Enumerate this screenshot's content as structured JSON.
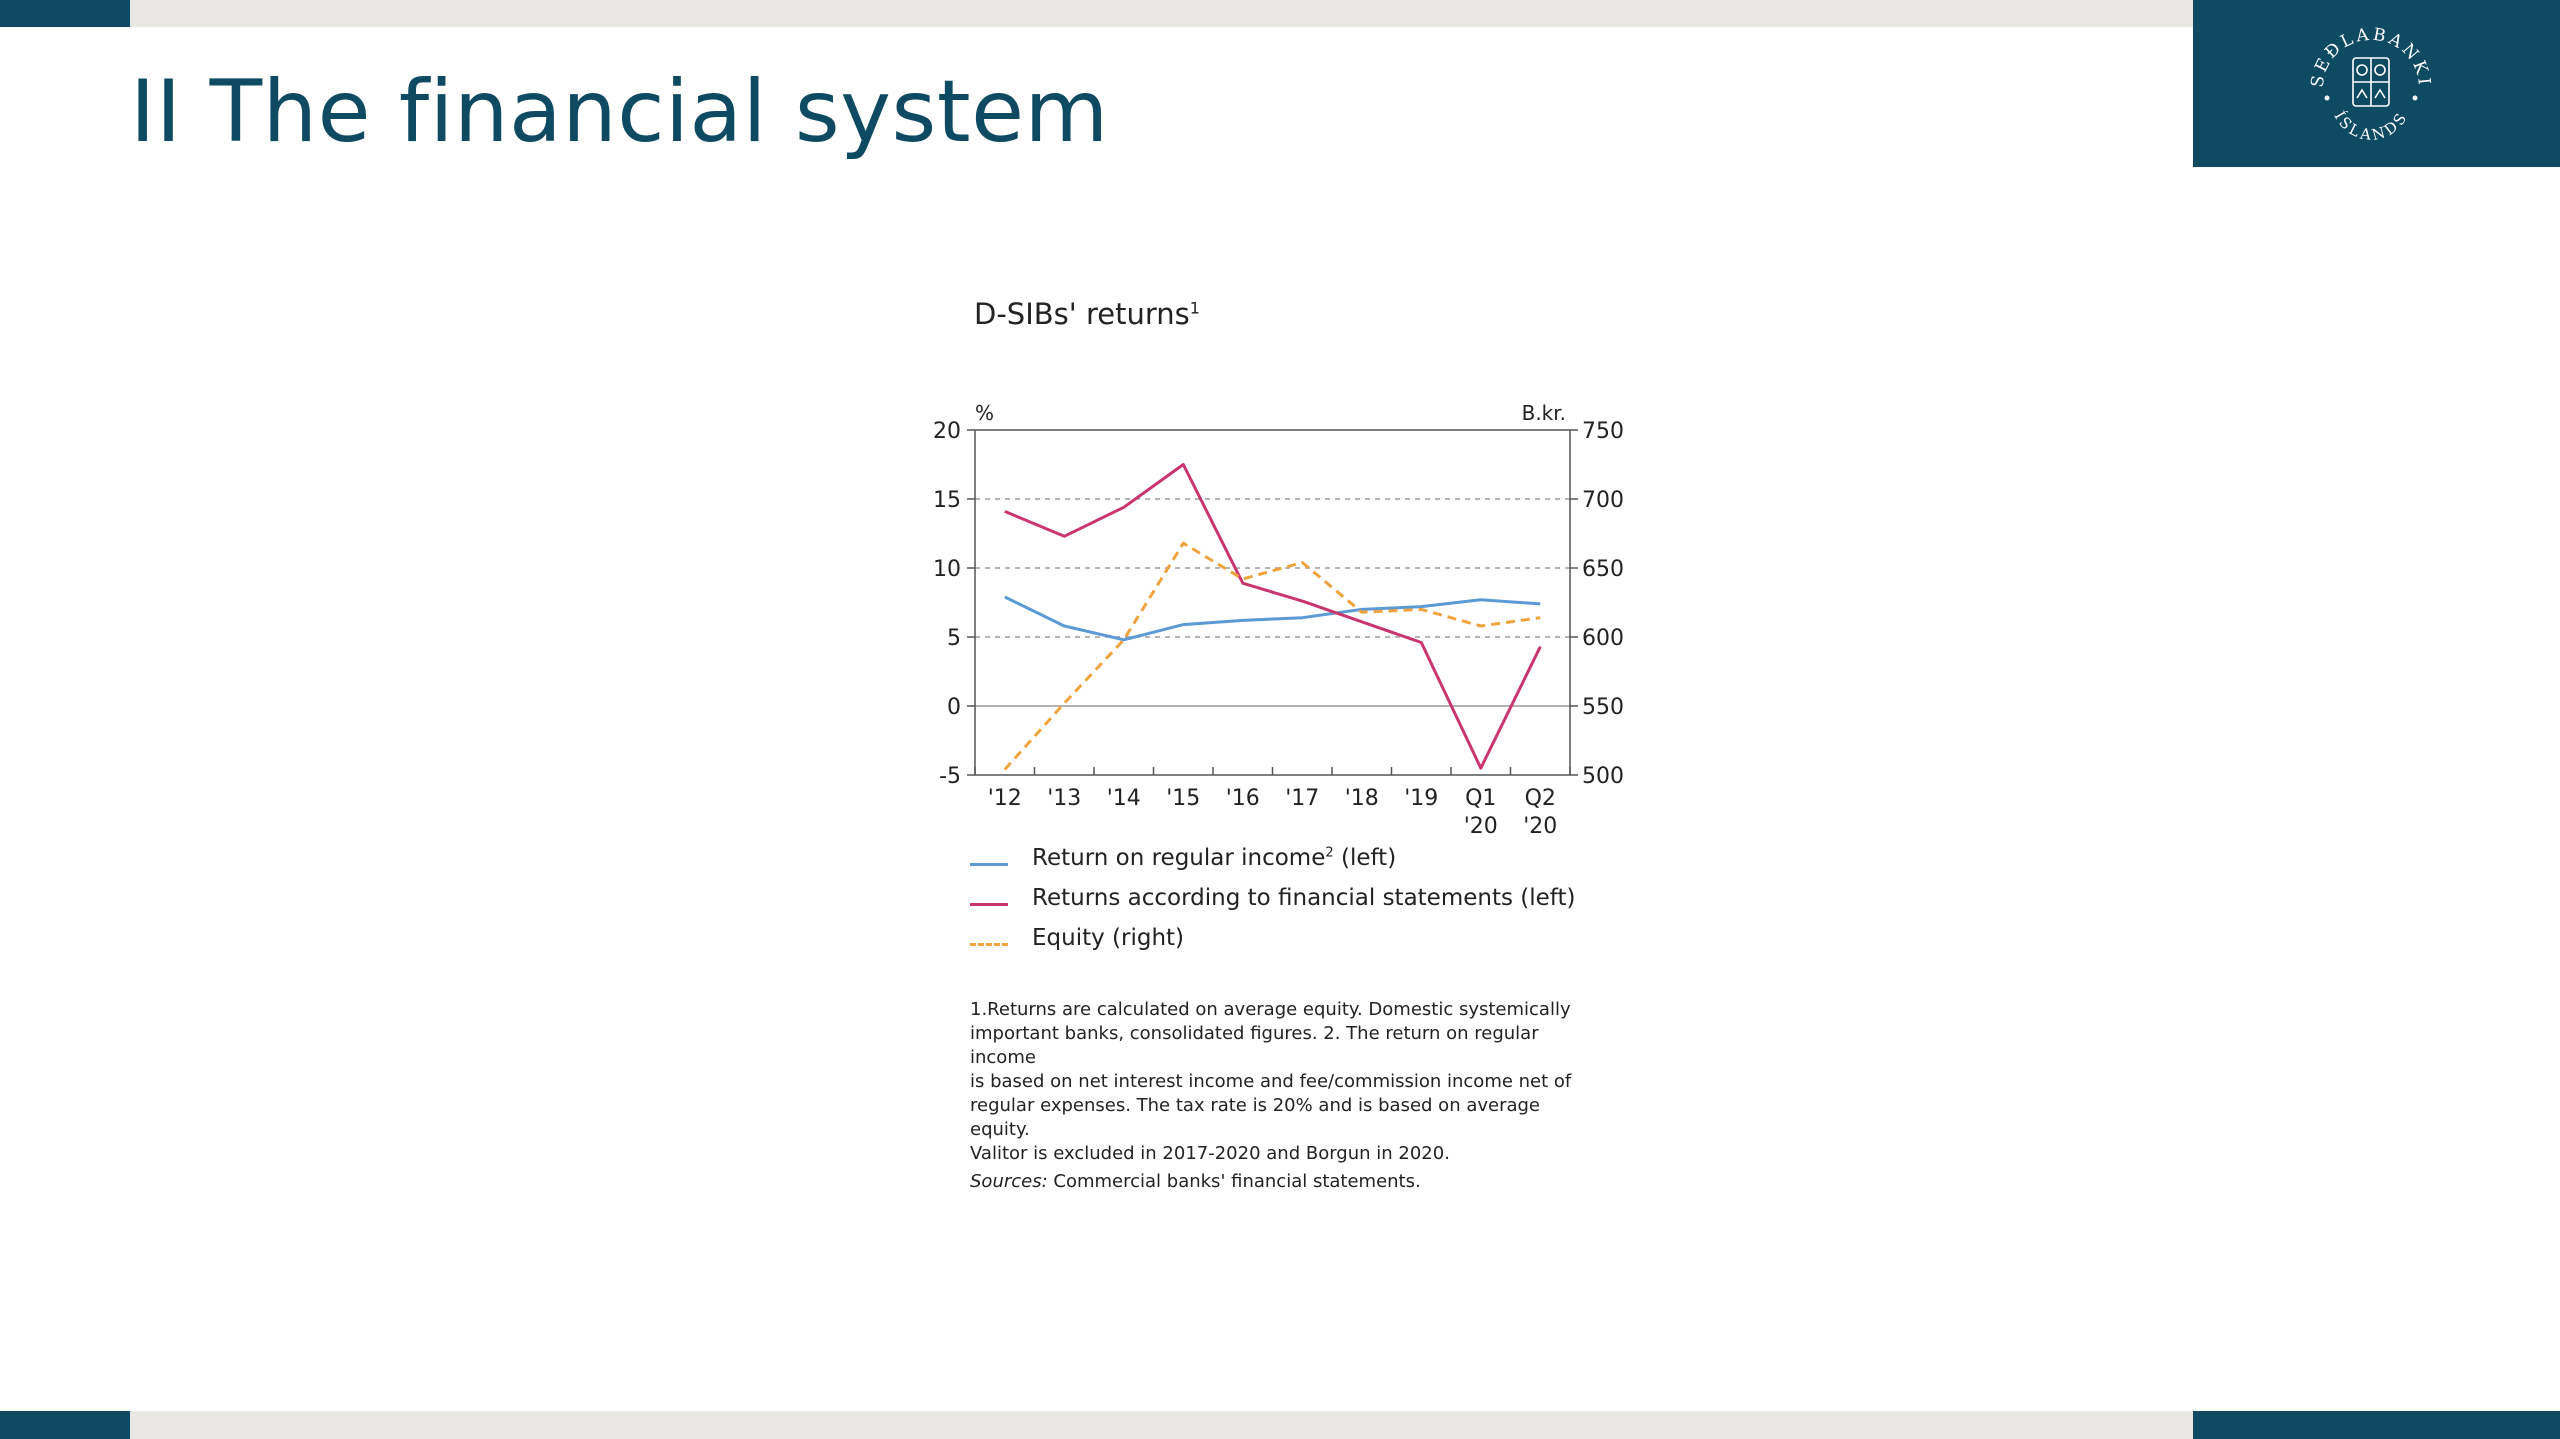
{
  "slide": {
    "title": "II The financial system"
  },
  "logo": {
    "top_text": "SEÐLABANKI",
    "bottom_text": "ÍSLANDS"
  },
  "colors": {
    "navy": "#0f4a63",
    "band": "#e9e7e3",
    "series_regular": "#5b9bd5",
    "series_statements": "#c9366f",
    "series_equity": "#f0a33c"
  },
  "chart_data": {
    "type": "line",
    "title": "D-SIBs' returns",
    "title_sup": "1",
    "left_unit": "%",
    "right_unit": "B.kr.",
    "ylim": [
      -5,
      20
    ],
    "y_ticks": [
      "20",
      "15",
      "10",
      "5",
      "0",
      "-5"
    ],
    "y2lim": [
      500,
      750
    ],
    "y2_ticks": [
      "750",
      "700",
      "650",
      "600",
      "550",
      "500"
    ],
    "x_labels": [
      [
        "'12"
      ],
      [
        "'13"
      ],
      [
        "'14"
      ],
      [
        "'15"
      ],
      [
        "'16"
      ],
      [
        "'17"
      ],
      [
        "'18"
      ],
      [
        "'19"
      ],
      [
        "Q1",
        "'20"
      ],
      [
        "Q2",
        "'20"
      ]
    ],
    "grid": "dashed at 5, 10, 15; solid at 0",
    "series": [
      {
        "name": "Return on regular income",
        "name_sup": "2",
        "suffix": " (left)",
        "axis": "left",
        "style": "solid",
        "values": [
          7.9,
          5.8,
          4.8,
          5.9,
          6.2,
          6.4,
          7.0,
          7.2,
          7.7,
          7.4
        ]
      },
      {
        "name": "Returns according to financial statements",
        "name_sup": "",
        "suffix": " (left)",
        "axis": "left",
        "style": "solid",
        "values": [
          14.1,
          12.3,
          14.4,
          17.5,
          8.9,
          7.6,
          6.1,
          4.6,
          -4.5,
          4.3
        ]
      },
      {
        "name": "Equity",
        "name_sup": "",
        "suffix": " (right)",
        "axis": "right",
        "style": "dashed",
        "values": [
          504,
          552,
          598,
          668,
          642,
          654,
          618,
          620,
          608,
          614
        ]
      }
    ]
  },
  "notes": {
    "lines": [
      "1.Returns are calculated on average equity. Domestic systemically",
      "important banks, consolidated figures. 2. The return on regular income",
      "is based on net interest income and fee/commission income net of",
      "regular expenses. The tax rate is 20% and is based on average equity.",
      "Valitor is excluded in 2017-2020 and Borgun in 2020."
    ],
    "sources_label": "Sources:",
    "sources_text": " Commercial banks' financial statements."
  }
}
